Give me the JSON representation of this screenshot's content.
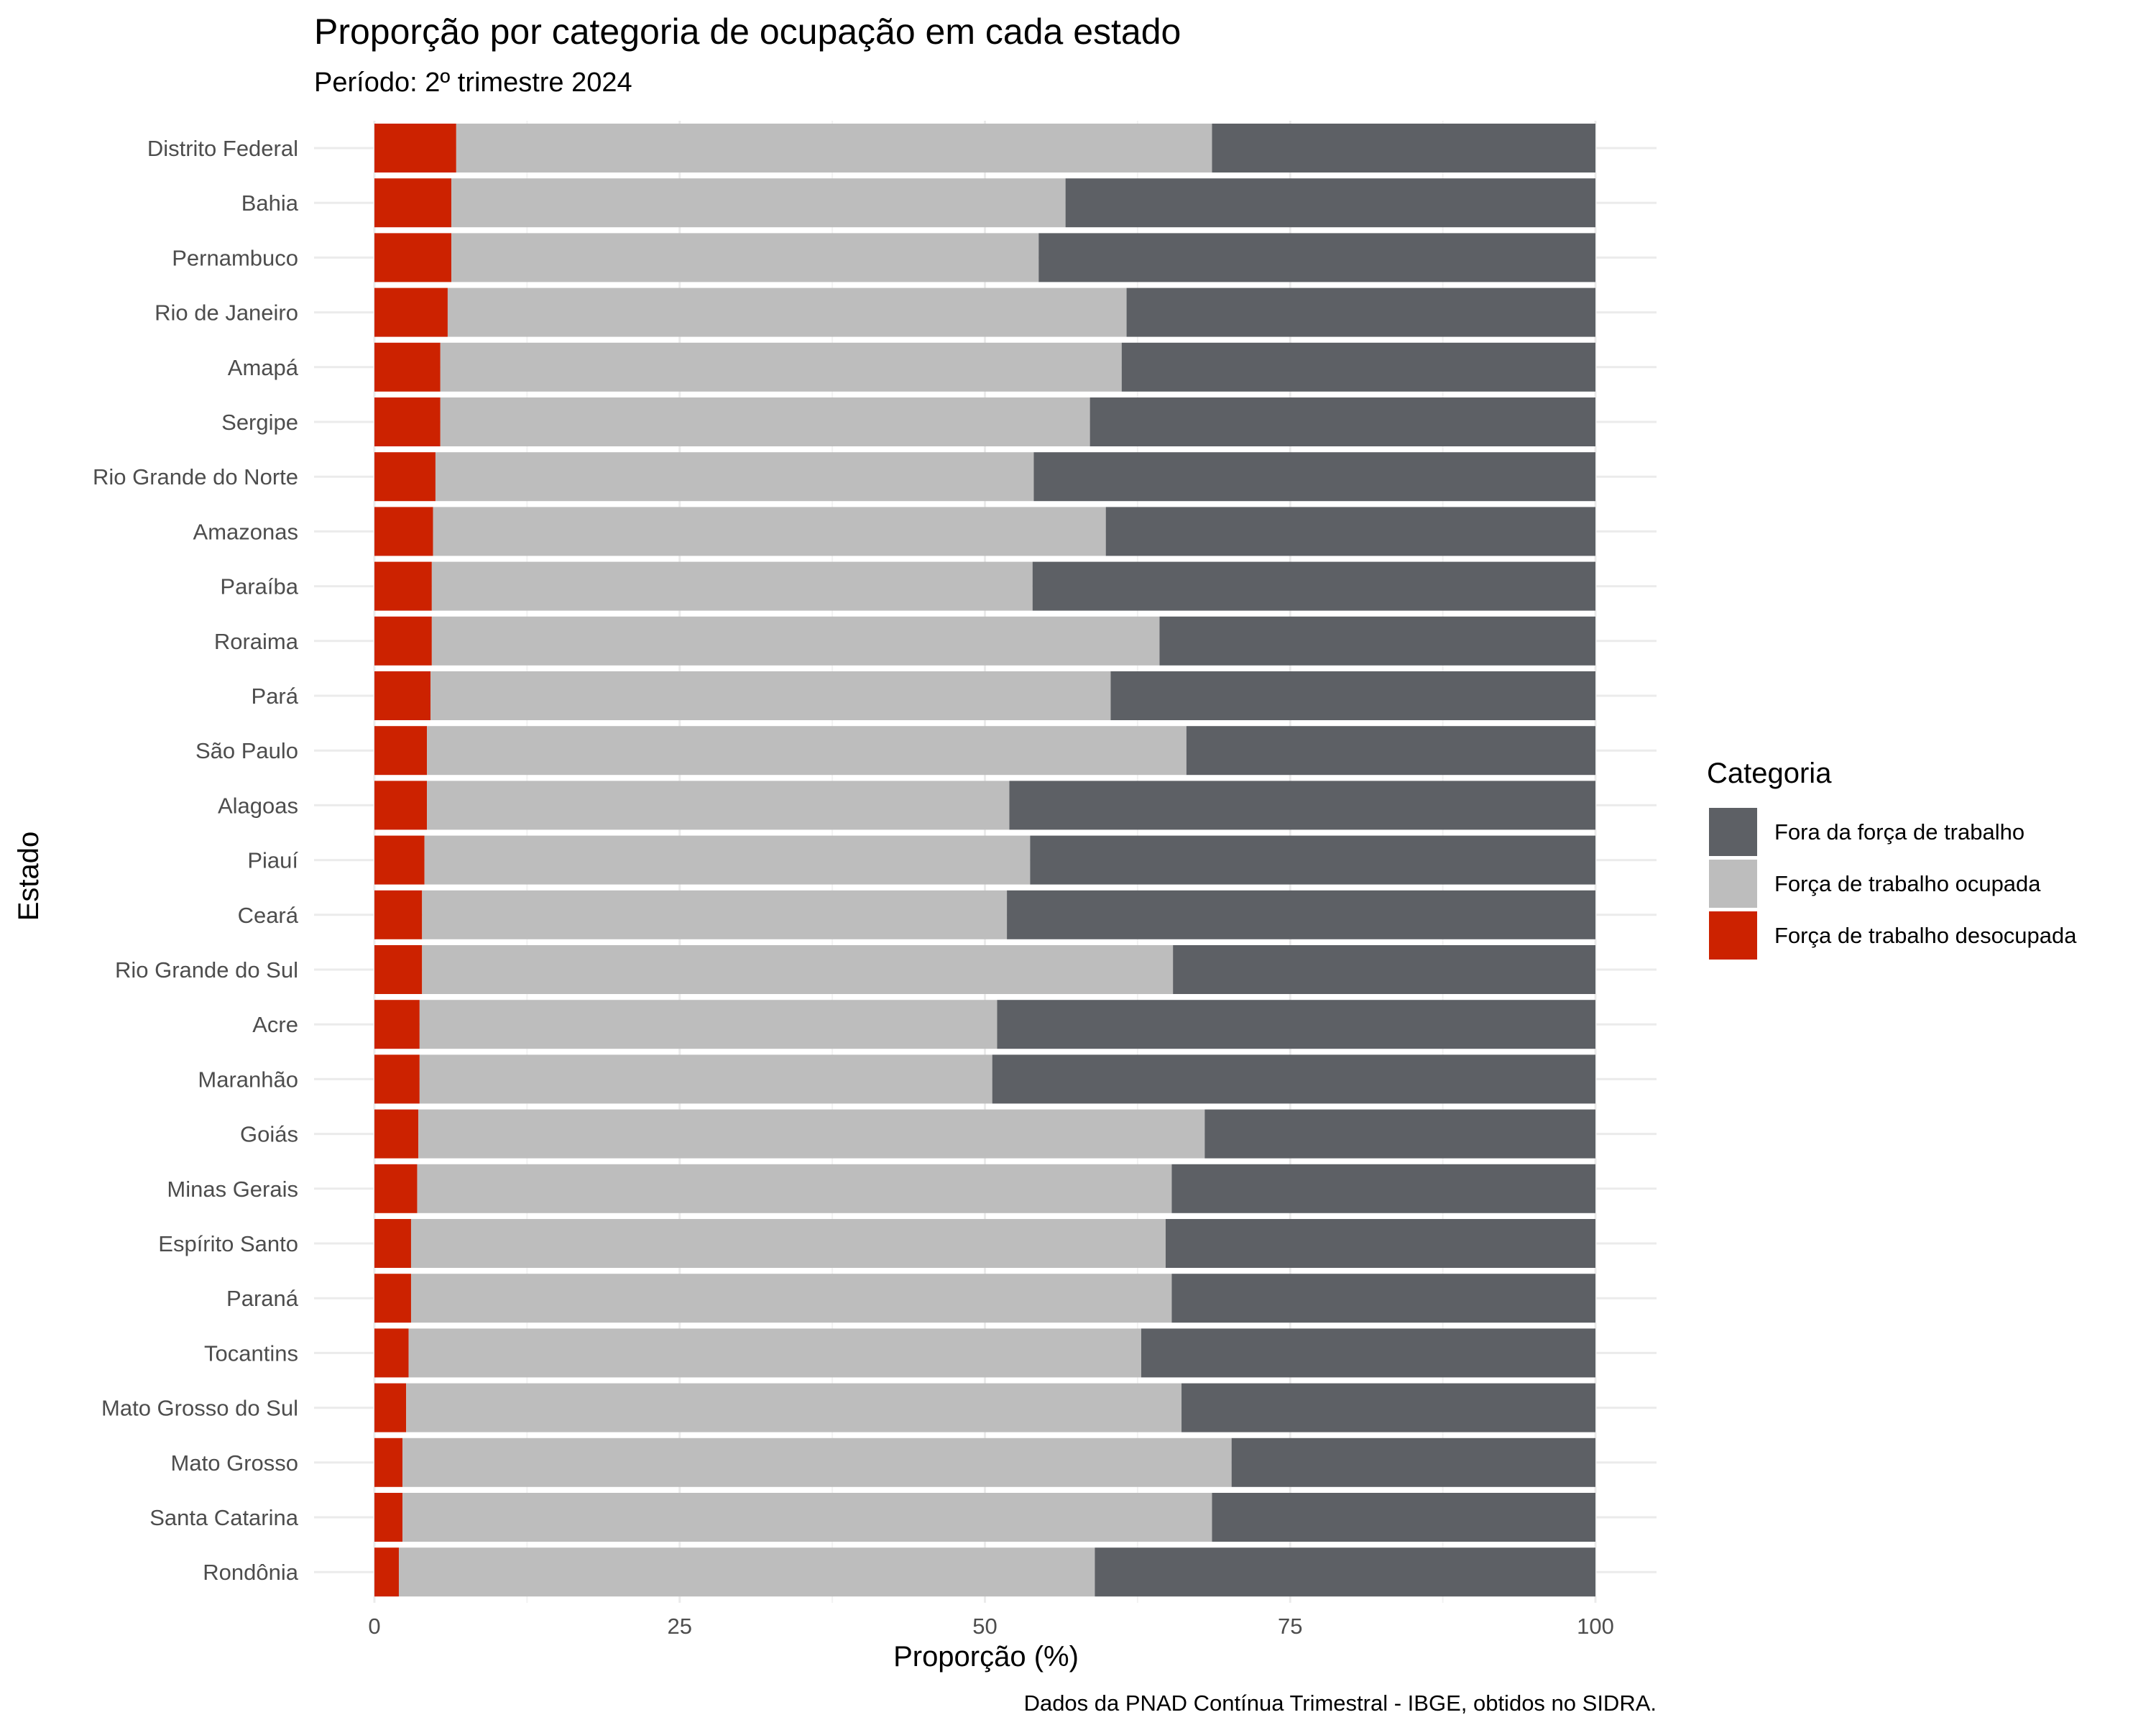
{
  "title": "Proporção por categoria de ocupação em cada estado",
  "subtitle": "Período: 2º trimestre 2024",
  "caption": "Dados da PNAD Contínua Trimestral - IBGE, obtidos no SIDRA.",
  "chart_data": {
    "type": "bar",
    "orientation": "horizontal",
    "stacked": true,
    "xlabel": "Proporção (%)",
    "ylabel": "Estado",
    "xlim": [
      0,
      100
    ],
    "x_ticks": [
      "0",
      "25",
      "50",
      "75",
      "100"
    ],
    "grid": true,
    "legend_title": "Categoria",
    "legend_position": "right",
    "categories": [
      "Distrito Federal",
      "Bahia",
      "Pernambuco",
      "Rio de Janeiro",
      "Amapá",
      "Sergipe",
      "Rio Grande do Norte",
      "Amazonas",
      "Paraíba",
      "Roraima",
      "Pará",
      "São Paulo",
      "Alagoas",
      "Piauí",
      "Ceará",
      "Rio Grande do Sul",
      "Acre",
      "Maranhão",
      "Goiás",
      "Minas Gerais",
      "Espírito Santo",
      "Paraná",
      "Tocantins",
      "Mato Grosso do Sul",
      "Mato Grosso",
      "Santa Catarina",
      "Rondônia"
    ],
    "series": [
      {
        "name": "Força de trabalho desocupada",
        "color": "#CC2200",
        "values": [
          6.7,
          6.3,
          6.3,
          6.0,
          5.4,
          5.4,
          5.0,
          4.8,
          4.7,
          4.7,
          4.6,
          4.3,
          4.3,
          4.1,
          3.9,
          3.9,
          3.7,
          3.7,
          3.6,
          3.5,
          3.0,
          3.0,
          2.8,
          2.6,
          2.3,
          2.3,
          2.0
        ]
      },
      {
        "name": "Força de trabalho ocupada",
        "color": "#BDBDBD",
        "values": [
          61.9,
          50.3,
          48.1,
          55.6,
          55.8,
          53.2,
          49.0,
          55.1,
          49.2,
          59.6,
          55.7,
          62.2,
          47.7,
          49.6,
          47.9,
          61.5,
          47.3,
          46.9,
          64.4,
          61.8,
          61.8,
          62.3,
          60.0,
          63.5,
          67.9,
          66.3,
          57.0
        ]
      },
      {
        "name": "Fora da força de trabalho",
        "color": "#5D6065",
        "values": [
          31.4,
          43.4,
          45.6,
          38.4,
          38.8,
          41.4,
          46.0,
          40.1,
          46.1,
          35.7,
          39.7,
          33.5,
          48.0,
          46.3,
          48.2,
          34.6,
          49.0,
          49.4,
          32.0,
          34.7,
          35.2,
          34.7,
          37.2,
          33.9,
          29.8,
          31.4,
          41.0
        ]
      }
    ],
    "legend_order": [
      "Fora da força de trabalho",
      "Força de trabalho ocupada",
      "Força de trabalho desocupada"
    ]
  }
}
